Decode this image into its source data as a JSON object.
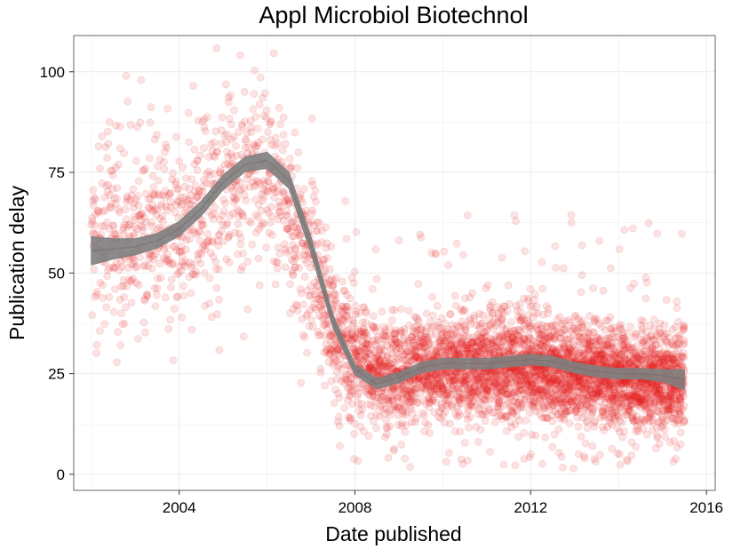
{
  "chart_data": {
    "type": "scatter",
    "title": "Appl Microbiol Biotechnol",
    "xlabel": "Date published",
    "ylabel": "Publication delay",
    "x_ticks": [
      {
        "value": 2004,
        "label": "2004"
      },
      {
        "value": 2008,
        "label": "2008"
      },
      {
        "value": 2012,
        "label": "2012"
      },
      {
        "value": 2016,
        "label": "2016"
      }
    ],
    "y_ticks": [
      {
        "value": 0,
        "label": "0"
      },
      {
        "value": 25,
        "label": "25"
      },
      {
        "value": 50,
        "label": "50"
      },
      {
        "value": 75,
        "label": "75"
      },
      {
        "value": 100,
        "label": "100"
      }
    ],
    "xlim": [
      2001.6,
      2016.2
    ],
    "ylim": [
      -4,
      109
    ],
    "grid": true,
    "legend": "none",
    "colors": {
      "points": "#e41a1c",
      "smooth": "#7f7f7f",
      "panel_border": "#7f7f7f",
      "grid": "#ebebeb"
    },
    "point_opacity": 0.12,
    "x_range_of_points": [
      2002.0,
      2015.5
    ],
    "density_profile": [
      {
        "x": 2002.0,
        "center": 58,
        "spread": 22,
        "relative_count": 0.5
      },
      {
        "x": 2003.0,
        "center": 60,
        "spread": 22,
        "relative_count": 0.6
      },
      {
        "x": 2004.0,
        "center": 62,
        "spread": 22,
        "relative_count": 0.6
      },
      {
        "x": 2005.0,
        "center": 70,
        "spread": 22,
        "relative_count": 0.6
      },
      {
        "x": 2006.0,
        "center": 76,
        "spread": 20,
        "relative_count": 0.6
      },
      {
        "x": 2007.0,
        "center": 55,
        "spread": 20,
        "relative_count": 0.8
      },
      {
        "x": 2007.5,
        "center": 34,
        "spread": 15,
        "relative_count": 1.2
      },
      {
        "x": 2008.5,
        "center": 25,
        "spread": 12,
        "relative_count": 1.6
      },
      {
        "x": 2010.0,
        "center": 27,
        "spread": 12,
        "relative_count": 2.0
      },
      {
        "x": 2012.0,
        "center": 27,
        "spread": 12,
        "relative_count": 2.6
      },
      {
        "x": 2014.0,
        "center": 24,
        "spread": 11,
        "relative_count": 2.6
      },
      {
        "x": 2015.5,
        "center": 23,
        "spread": 11,
        "relative_count": 2.6
      }
    ],
    "smooth": {
      "x": [
        2002.0,
        2002.5,
        2003.0,
        2003.5,
        2004.0,
        2004.5,
        2005.0,
        2005.5,
        2006.0,
        2006.5,
        2007.0,
        2007.5,
        2008.0,
        2008.5,
        2009.0,
        2009.5,
        2010.0,
        2010.5,
        2011.0,
        2011.5,
        2012.0,
        2012.5,
        2013.0,
        2013.5,
        2014.0,
        2014.5,
        2015.0,
        2015.5
      ],
      "y": [
        55.5,
        56,
        56.5,
        58,
        61,
        66,
        72.5,
        77,
        78,
        73,
        57,
        38,
        26,
        22.5,
        24,
        26.5,
        27.5,
        27.5,
        27.5,
        28,
        28.5,
        28,
        26.5,
        25.5,
        25,
        25,
        24.5,
        23.5
      ],
      "band_halfwidth": [
        3.5,
        2.5,
        2.0,
        1.8,
        1.8,
        1.8,
        1.8,
        1.8,
        2.0,
        2.0,
        2.0,
        1.6,
        1.3,
        1.3,
        1.3,
        1.3,
        1.3,
        1.3,
        1.3,
        1.3,
        1.3,
        1.3,
        1.3,
        1.3,
        1.3,
        1.3,
        1.5,
        2.5
      ]
    }
  }
}
